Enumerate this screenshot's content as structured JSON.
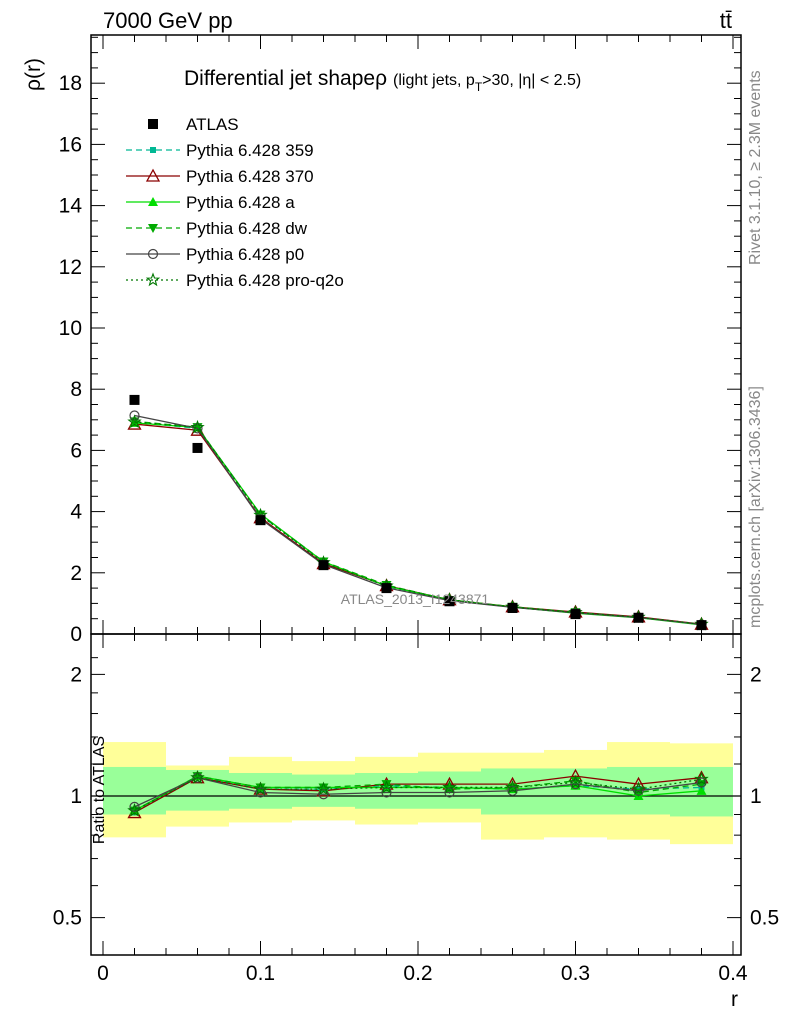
{
  "header": {
    "left": "7000 GeV pp",
    "right": "tt̄"
  },
  "side_labels": {
    "rivet": "Rivet 3.1.10, ≥ 2.3M events",
    "mcplots": "mcplots.cern.ch [arXiv:1306.3436]"
  },
  "watermark": "ATLAS_2013_I1243871",
  "chart_data": [
    {
      "type": "line",
      "title": "Differential jet shape ρ (light jets, p_T>30, |η| < 2.5)",
      "title_main": "Differential jet shape",
      "title_rho": "ρ",
      "title_sub_a": "(light jets, p",
      "title_sub_T": "T",
      "title_sub_b": ">30, |η| < 2.5)",
      "xlabel": "r",
      "ylabel": "ρ(r)",
      "xlim": [
        0,
        0.4
      ],
      "ylim": [
        0,
        19.6
      ],
      "x_ticks": [
        "0",
        "0.1",
        "0.2",
        "0.3",
        "0.4"
      ],
      "y_ticks": [
        "0",
        "2",
        "4",
        "6",
        "8",
        "10",
        "12",
        "14",
        "16",
        "18"
      ],
      "x": [
        0.02,
        0.06,
        0.1,
        0.14,
        0.18,
        0.22,
        0.26,
        0.3,
        0.34,
        0.38
      ],
      "data": {
        "name": "ATLAS",
        "values": [
          7.65,
          6.08,
          3.72,
          2.25,
          1.5,
          1.07,
          0.85,
          0.65,
          0.53,
          0.29
        ],
        "color": "#000000"
      },
      "series": [
        {
          "name": "Pythia 6.428 359",
          "color": "#00b894",
          "dash": "6,4",
          "marker": "square-small",
          "values": [
            6.92,
            6.72,
            3.88,
            2.35,
            1.56,
            1.11,
            0.88,
            0.69,
            0.55,
            0.31
          ]
        },
        {
          "name": "Pythia 6.428 370",
          "color": "#8b0000",
          "dash": "",
          "marker": "triangle-open",
          "values": [
            6.86,
            6.66,
            3.8,
            2.3,
            1.58,
            1.12,
            0.89,
            0.72,
            0.56,
            0.32
          ]
        },
        {
          "name": "Pythia 6.428 a",
          "color": "#00dd00",
          "dash": "",
          "marker": "triangle-filled",
          "values": [
            6.9,
            6.75,
            3.92,
            2.36,
            1.57,
            1.12,
            0.88,
            0.68,
            0.53,
            0.3
          ]
        },
        {
          "name": "Pythia 6.428 dw",
          "color": "#00aa00",
          "dash": "6,4",
          "marker": "triangle-down",
          "values": [
            6.95,
            6.76,
            3.9,
            2.37,
            1.6,
            1.11,
            0.89,
            0.71,
            0.54,
            0.31
          ]
        },
        {
          "name": "Pythia 6.428 p0",
          "color": "#444444",
          "dash": "",
          "marker": "circle-open",
          "values": [
            7.14,
            6.72,
            3.76,
            2.27,
            1.51,
            1.09,
            0.87,
            0.69,
            0.54,
            0.31
          ]
        },
        {
          "name": "Pythia 6.428 pro-q2o",
          "color": "#007700",
          "dash": "2,3",
          "marker": "star",
          "values": [
            6.93,
            6.75,
            3.88,
            2.33,
            1.57,
            1.12,
            0.88,
            0.7,
            0.55,
            0.32
          ]
        }
      ],
      "legend_position": "top-left"
    },
    {
      "type": "line",
      "ylabel": "Ratio to ATLAS",
      "xlabel": "r",
      "xlim": [
        0,
        0.4
      ],
      "ylim": [
        0.4,
        2.4
      ],
      "y_scale": "log",
      "y_ticks": [
        "0.5",
        "1",
        "2"
      ],
      "x": [
        0.02,
        0.06,
        0.1,
        0.14,
        0.18,
        0.22,
        0.26,
        0.3,
        0.34,
        0.38
      ],
      "bin_edges": [
        0,
        0.04,
        0.08,
        0.12,
        0.16,
        0.2,
        0.24,
        0.28,
        0.32,
        0.36,
        0.4
      ],
      "band_inner": [
        [
          0.9,
          1.18
        ],
        [
          0.92,
          1.16
        ],
        [
          0.93,
          1.14
        ],
        [
          0.94,
          1.13
        ],
        [
          0.93,
          1.14
        ],
        [
          0.93,
          1.15
        ],
        [
          0.9,
          1.17
        ],
        [
          0.9,
          1.17
        ],
        [
          0.9,
          1.18
        ],
        [
          0.89,
          1.18
        ]
      ],
      "band_outer": [
        [
          0.79,
          1.36
        ],
        [
          0.84,
          1.19
        ],
        [
          0.86,
          1.25
        ],
        [
          0.87,
          1.22
        ],
        [
          0.85,
          1.25
        ],
        [
          0.86,
          1.28
        ],
        [
          0.78,
          1.28
        ],
        [
          0.79,
          1.3
        ],
        [
          0.78,
          1.36
        ],
        [
          0.76,
          1.35
        ]
      ],
      "band_colors": {
        "inner": "#99ff99",
        "outer": "#ffff99"
      },
      "series": [
        {
          "name": "Pythia 6.428 359",
          "color": "#00b894",
          "dash": "6,4",
          "marker": "square-small",
          "values": [
            0.91,
            1.12,
            1.04,
            1.04,
            1.06,
            1.05,
            1.04,
            1.06,
            1.04,
            1.05
          ]
        },
        {
          "name": "Pythia 6.428 370",
          "color": "#8b0000",
          "dash": "",
          "marker": "triangle-open",
          "values": [
            0.91,
            1.11,
            1.04,
            1.03,
            1.07,
            1.07,
            1.07,
            1.12,
            1.07,
            1.11
          ]
        },
        {
          "name": "Pythia 6.428 a",
          "color": "#00dd00",
          "dash": "",
          "marker": "triangle-filled",
          "values": [
            0.92,
            1.12,
            1.05,
            1.05,
            1.05,
            1.05,
            1.04,
            1.06,
            1.0,
            1.03
          ]
        },
        {
          "name": "Pythia 6.428 dw",
          "color": "#00aa00",
          "dash": "6,4",
          "marker": "triangle-down",
          "values": [
            0.92,
            1.12,
            1.05,
            1.05,
            1.07,
            1.04,
            1.05,
            1.09,
            1.02,
            1.07
          ]
        },
        {
          "name": "Pythia 6.428 p0",
          "color": "#444444",
          "dash": "",
          "marker": "circle-open",
          "values": [
            0.94,
            1.11,
            1.02,
            1.01,
            1.02,
            1.02,
            1.03,
            1.07,
            1.03,
            1.08
          ]
        },
        {
          "name": "Pythia 6.428 pro-q2o",
          "color": "#007700",
          "dash": "2,3",
          "marker": "star",
          "values": [
            0.92,
            1.11,
            1.04,
            1.04,
            1.05,
            1.05,
            1.05,
            1.08,
            1.04,
            1.1
          ]
        }
      ]
    }
  ]
}
